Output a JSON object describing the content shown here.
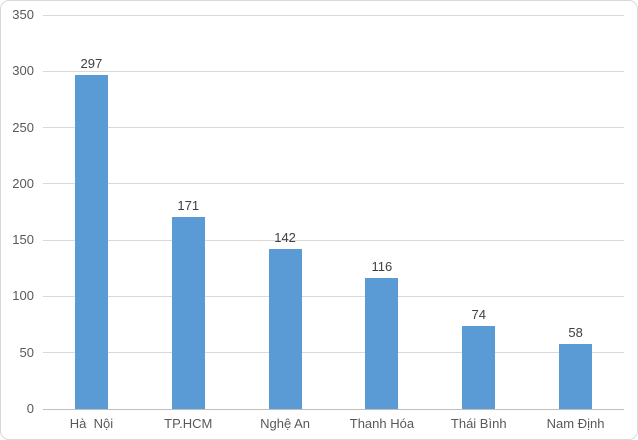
{
  "chart_data": {
    "type": "bar",
    "title": "",
    "xlabel": "",
    "ylabel": "",
    "categories": [
      "Hà  Nội",
      "TP.HCM",
      "Nghệ An",
      "Thanh Hóa",
      "Thái Bình",
      "Nam Định"
    ],
    "values": [
      297,
      171,
      142,
      116,
      74,
      58
    ],
    "data_labels": [
      "297",
      "171",
      "142",
      "116",
      "74",
      "58"
    ],
    "ylim": [
      0,
      350
    ],
    "yticks": [
      "0",
      "50",
      "100",
      "150",
      "200",
      "250",
      "300",
      "350"
    ],
    "grid": true,
    "legend": false,
    "colors": {
      "bar": "#5B9BD5",
      "gridline": "#D9D9D9",
      "axis_line": "#BFBFBF",
      "tick_label": "#595959",
      "data_label": "#404040",
      "category_label": "#595959",
      "chart_border": "#D9D9D9",
      "background": "#FFFFFF"
    }
  }
}
